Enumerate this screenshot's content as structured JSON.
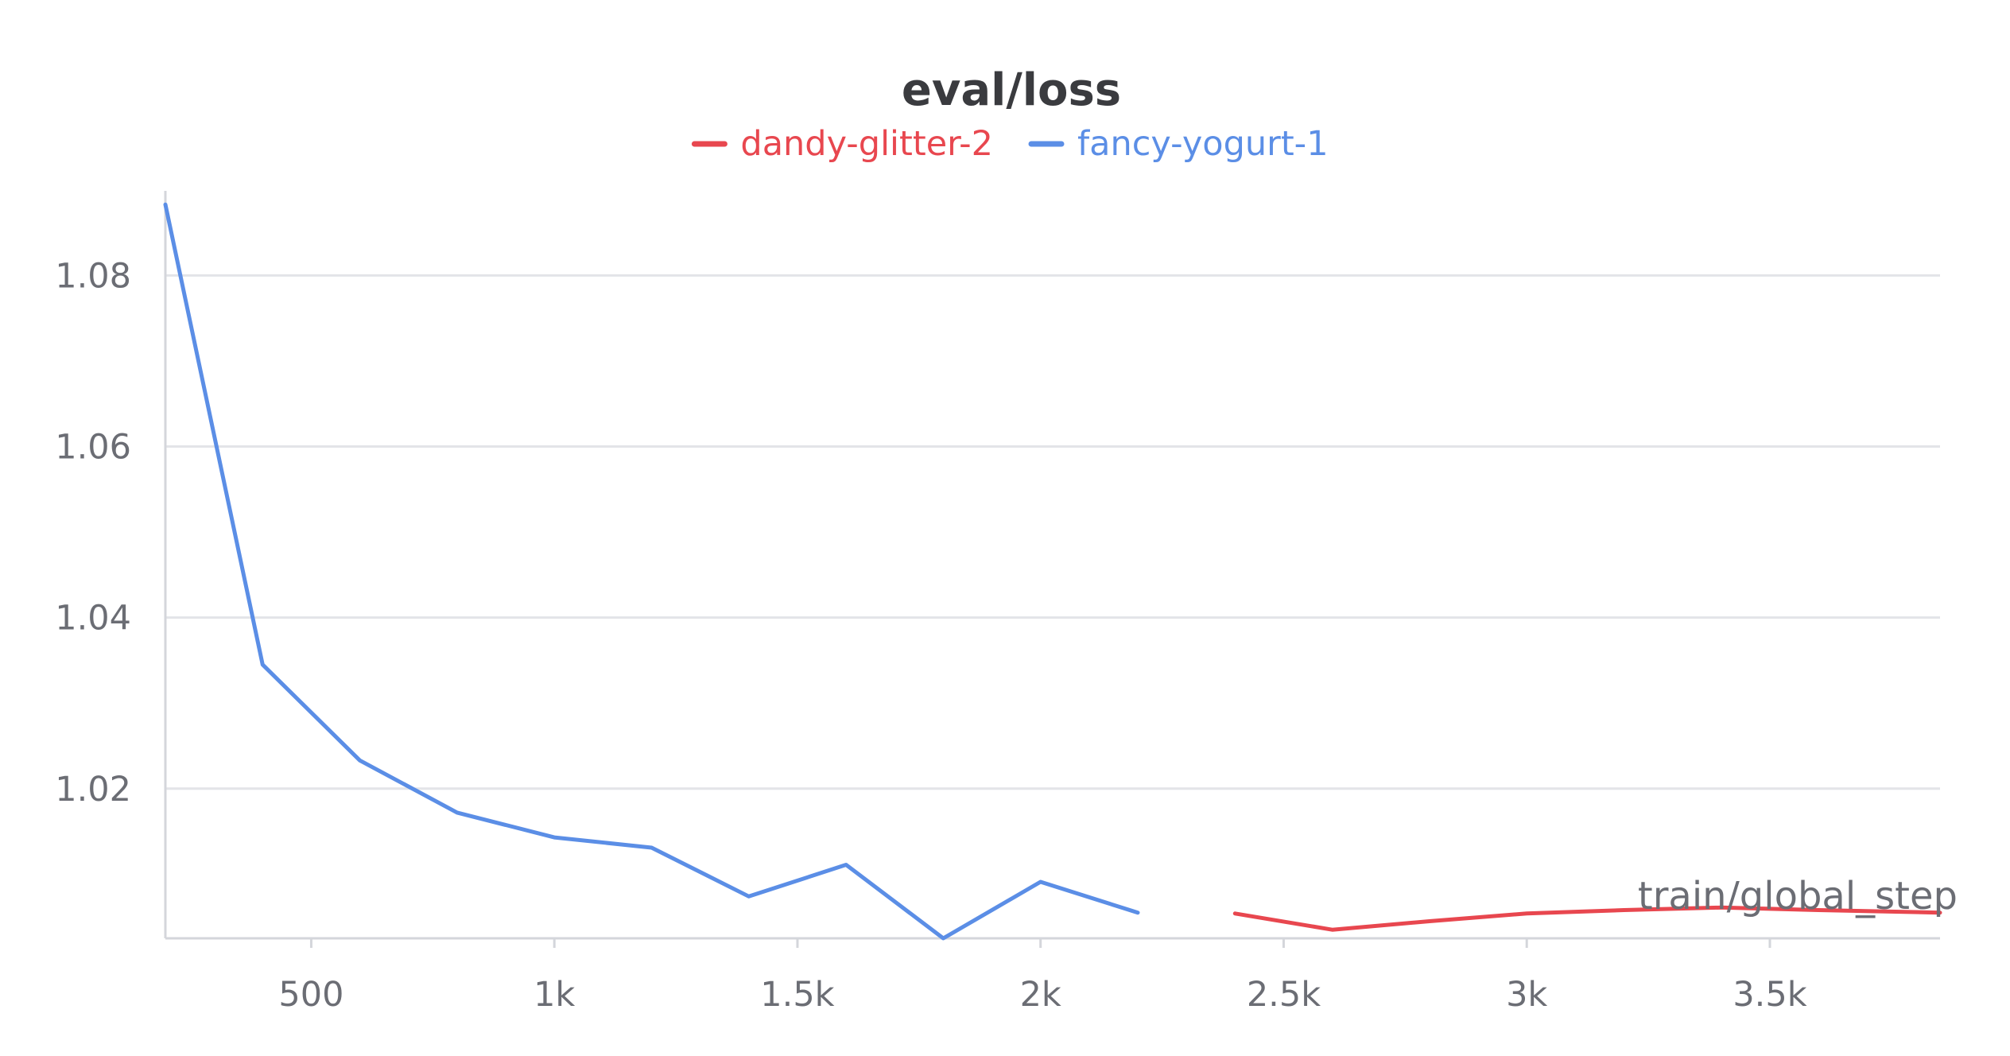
{
  "chart_data": {
    "type": "line",
    "title": "eval/loss",
    "xlabel": "train/global_step",
    "ylabel": "",
    "xlim": [
      200,
      3850
    ],
    "ylim": [
      1.0025,
      1.0885
    ],
    "grid": true,
    "legend_position": "top-center",
    "x_ticks": [
      {
        "value": 500,
        "label": "500"
      },
      {
        "value": 1000,
        "label": "1k"
      },
      {
        "value": 1500,
        "label": "1.5k"
      },
      {
        "value": 2000,
        "label": "2k"
      },
      {
        "value": 2500,
        "label": "2.5k"
      },
      {
        "value": 3000,
        "label": "3k"
      },
      {
        "value": 3500,
        "label": "3.5k"
      }
    ],
    "y_ticks": [
      {
        "value": 1.02,
        "label": "1.02"
      },
      {
        "value": 1.04,
        "label": "1.04"
      },
      {
        "value": 1.06,
        "label": "1.06"
      },
      {
        "value": 1.08,
        "label": "1.08"
      }
    ],
    "series": [
      {
        "name": "dandy-glitter-2",
        "color": "#e8474f",
        "x": [
          2400,
          2600,
          2800,
          3000,
          3200,
          3400,
          3600,
          3850
        ],
        "y": [
          1.0054,
          1.0035,
          1.0045,
          1.0054,
          1.0058,
          1.0061,
          1.0058,
          1.0055
        ]
      },
      {
        "name": "fancy-yogurt-1",
        "color": "#5b8ee6",
        "x": [
          200,
          400,
          600,
          800,
          1000,
          1200,
          1400,
          1600,
          1800,
          2000,
          2200
        ],
        "y": [
          1.0883,
          1.0345,
          1.0233,
          1.0172,
          1.0143,
          1.0131,
          1.0074,
          1.0111,
          1.0025,
          1.0091,
          1.0055
        ]
      }
    ]
  }
}
